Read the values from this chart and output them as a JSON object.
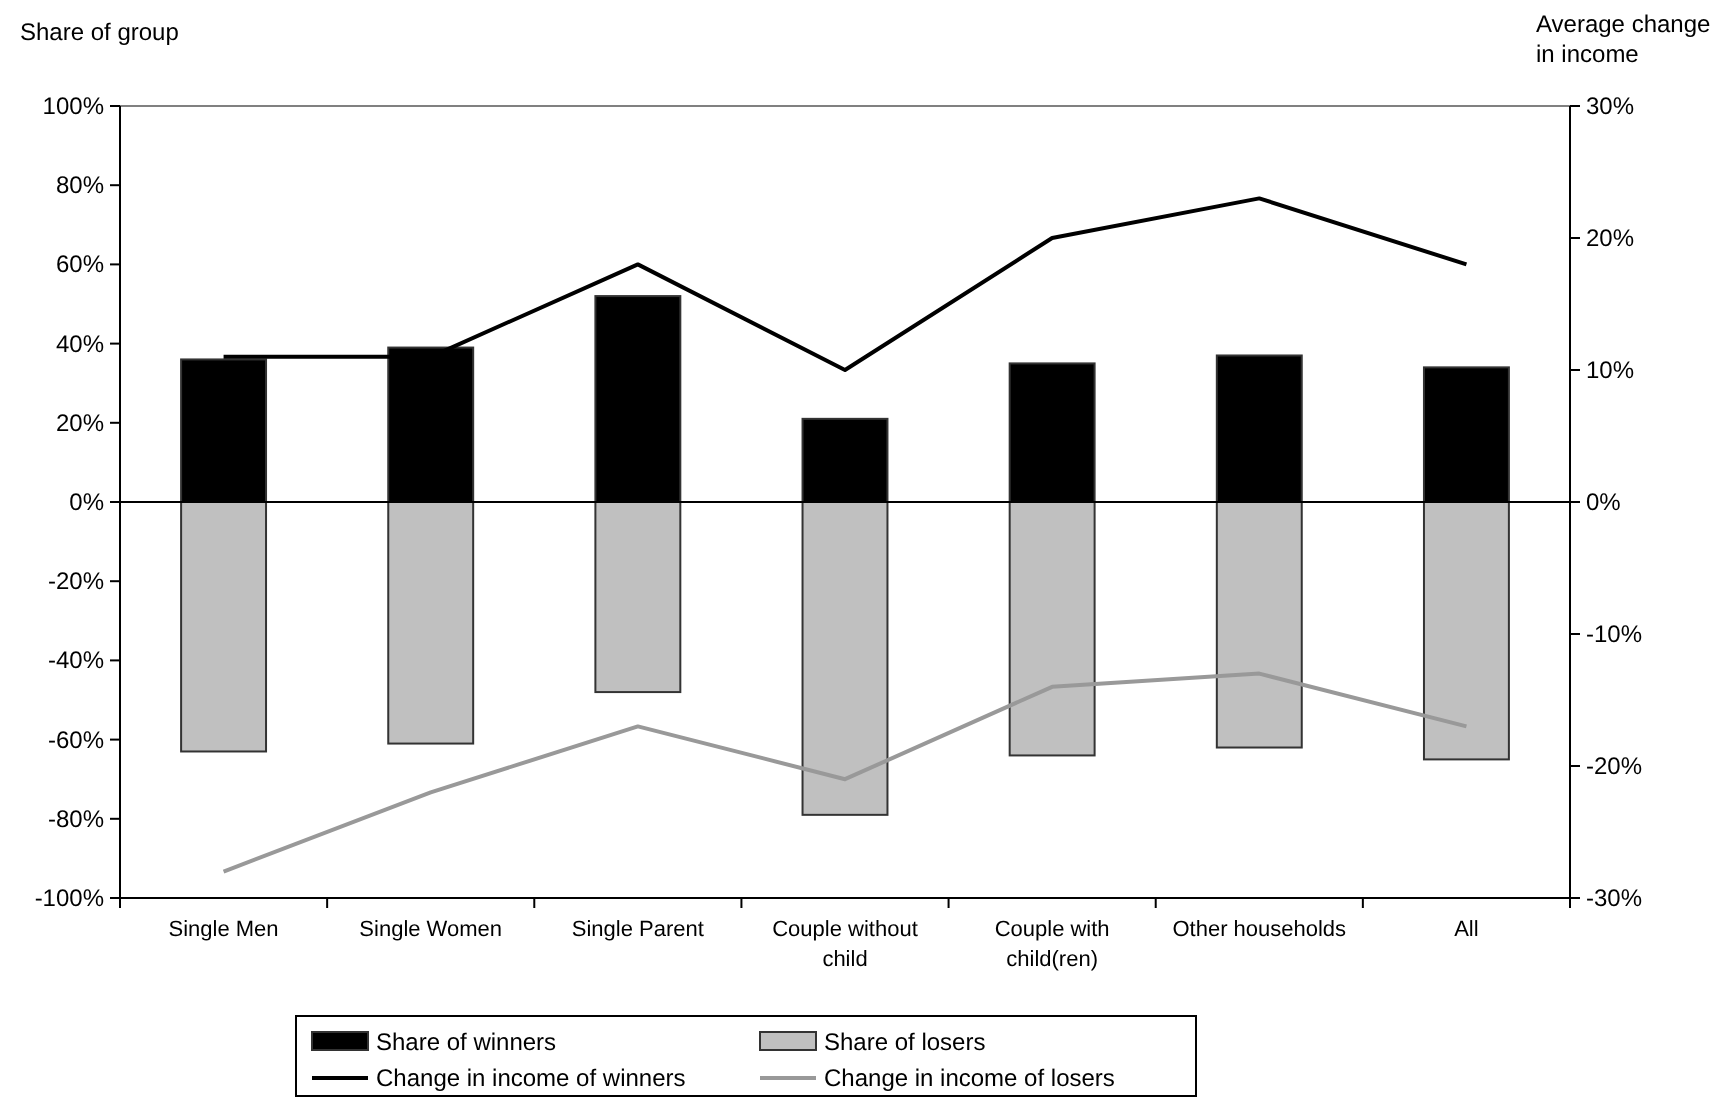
{
  "chart_data": {
    "type": "bar",
    "ylabel": "Share of group",
    "y2label": "Average change in income",
    "categories": [
      "Single Men",
      "Single Women",
      "Single Parent",
      "Couple without child",
      "Couple with child(ren)",
      "Other households",
      "All"
    ],
    "series": [
      {
        "name": "Share of winners",
        "color": "#000000",
        "values": [
          36,
          39,
          52,
          21,
          35,
          37,
          34
        ]
      },
      {
        "name": "Share of losers",
        "color": "#c0c0c0",
        "values": [
          -63,
          -61,
          -48,
          -79,
          -64,
          -62,
          -65
        ]
      },
      {
        "name": "Change in income of winners",
        "type": "line",
        "axis": "y2",
        "color": "#000000",
        "values": [
          11,
          11,
          18,
          10,
          20,
          23,
          18
        ]
      },
      {
        "name": "Change in income of losers",
        "type": "line",
        "axis": "y2",
        "color": "#999999",
        "values": [
          -28,
          -22,
          -17,
          -21,
          -14,
          -13,
          -17
        ]
      }
    ],
    "ylim": [
      -100,
      100
    ],
    "yticks": [
      {
        "value": -100,
        "label": "-100%"
      },
      {
        "value": -80,
        "label": "-80%"
      },
      {
        "value": -60,
        "label": "-60%"
      },
      {
        "value": -40,
        "label": "-40%"
      },
      {
        "value": -20,
        "label": "-20%"
      },
      {
        "value": 0,
        "label": "0%"
      },
      {
        "value": 20,
        "label": "20%"
      },
      {
        "value": 40,
        "label": "40%"
      },
      {
        "value": 60,
        "label": "60%"
      },
      {
        "value": 80,
        "label": "80%"
      },
      {
        "value": 100,
        "label": "100%"
      }
    ],
    "y2lim": [
      -30,
      30
    ],
    "y2ticks": [
      {
        "value": -30,
        "label": "-30%"
      },
      {
        "value": -20,
        "label": "-20%"
      },
      {
        "value": -10,
        "label": "-10%"
      },
      {
        "value": 0,
        "label": "0%"
      },
      {
        "value": 10,
        "label": "10%"
      },
      {
        "value": 20,
        "label": "20%"
      },
      {
        "value": 30,
        "label": "30%"
      }
    ],
    "stacked": true,
    "legend": "bottom",
    "marker": "none",
    "line_style": "solid"
  }
}
